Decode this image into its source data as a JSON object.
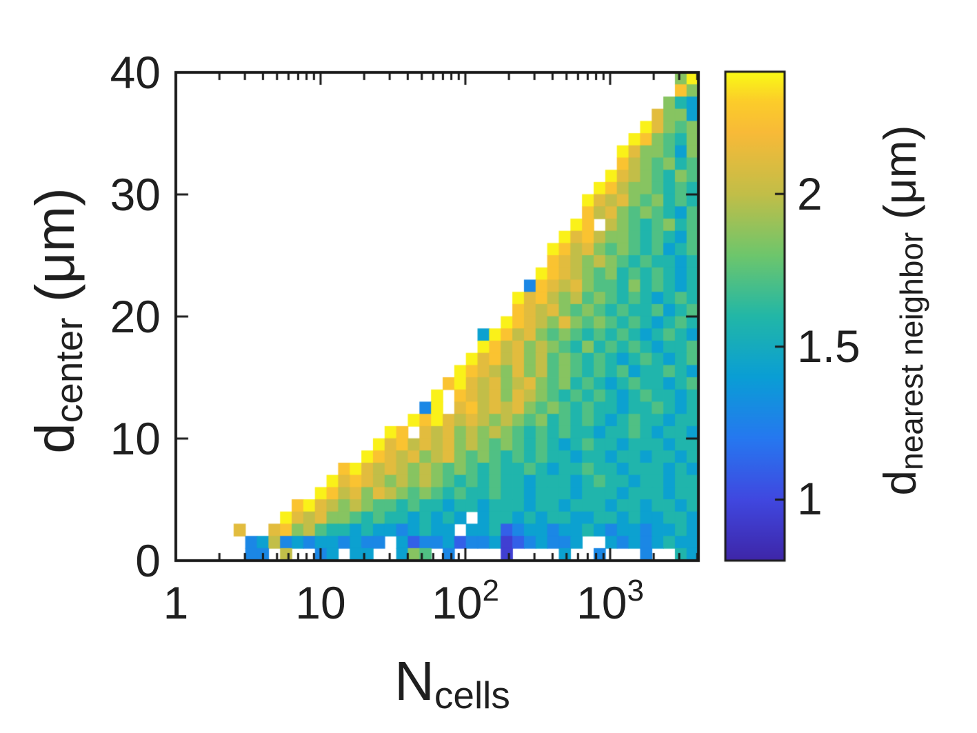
{
  "colors": {
    "background": "#ffffff",
    "axis": "#1a1a1a",
    "text": "#1f1f1f"
  },
  "chart_data": {
    "type": "heatmap",
    "title": "",
    "x_axis": {
      "label": {
        "main": "N",
        "sub": "cells"
      },
      "scale": "log",
      "range": [
        1,
        4000
      ],
      "log_span": 3.61,
      "ticks": [
        {
          "value": 1,
          "base": "1"
        },
        {
          "value": 10,
          "base": "10"
        },
        {
          "value": 100,
          "base": "10",
          "exp": "2"
        },
        {
          "value": 1000,
          "base": "10",
          "exp": "3"
        }
      ]
    },
    "y_axis": {
      "label": {
        "main": "d",
        "sub": "center",
        "rest": " (μm)"
      },
      "scale": "linear",
      "range": [
        0,
        40
      ],
      "ticks": [
        {
          "value": 0,
          "label": "0"
        },
        {
          "value": 10,
          "label": "10"
        },
        {
          "value": 20,
          "label": "20"
        },
        {
          "value": 30,
          "label": "30"
        },
        {
          "value": 40,
          "label": "40"
        }
      ]
    },
    "colorbar": {
      "label": {
        "main": "d",
        "sub": "nearest neighbor",
        "rest": " (μm)"
      },
      "range": [
        0.8,
        2.4
      ],
      "ticks": [
        {
          "value": 1,
          "label": "1"
        },
        {
          "value": 1.5,
          "label": "1.5"
        },
        {
          "value": 2,
          "label": "2"
        }
      ]
    },
    "colormap": {
      "name": "parula",
      "stops": [
        [
          0.0,
          "#3E26A8"
        ],
        [
          0.125,
          "#4048E0"
        ],
        [
          0.25,
          "#2678F0"
        ],
        [
          0.375,
          "#0A9ED5"
        ],
        [
          0.5,
          "#22B7A7"
        ],
        [
          0.625,
          "#6EC66C"
        ],
        [
          0.75,
          "#C2BE48"
        ],
        [
          0.875,
          "#F8BA38"
        ],
        [
          0.94,
          "#FCCD2A"
        ],
        [
          1.0,
          "#F9FB15"
        ]
      ]
    },
    "grid": {
      "n_cols": 45,
      "n_rows": 40,
      "row_height_um": 1,
      "note": "rows listed top (d=39-40um) to bottom (d=0-1um); s = starting column index; '.' = no data"
    },
    "encoding": {
      "a": 0.95,
      "b": 1.1,
      "c": 1.28,
      "d": 1.42,
      "e": 1.58,
      "f": 1.72,
      "g": 1.86,
      "h": 2.0,
      "i": 2.12,
      "j": 2.25,
      "k": 2.38
    },
    "rows": [
      {
        "s": 43,
        "v": "gk"
      },
      {
        "s": 43,
        "v": "jg"
      },
      {
        "s": 42,
        "v": "ged"
      },
      {
        "s": 41,
        "v": "iggd"
      },
      {
        "s": 40,
        "v": "kigfg"
      },
      {
        "s": 39,
        "v": "kjgfeg"
      },
      {
        "s": 38,
        "v": "kiggfdg"
      },
      {
        "s": 38,
        "v": "jhgfgef"
      },
      {
        "s": 37,
        "v": "kihgfegf"
      },
      {
        "s": 36,
        "v": "kjhggfefe"
      },
      {
        "s": 35,
        "v": "kihigfgefe"
      },
      {
        "s": 35,
        "v": "jhigfgfedf"
      },
      {
        "s": 34,
        "v": "kj.hgfefgef"
      },
      {
        "s": 33,
        "v": "kijhggfefedf"
      },
      {
        "s": 32,
        "v": "kjhigfgfefdef"
      },
      {
        "s": 32,
        "v": "jihghgfefeede"
      },
      {
        "s": 31,
        "v": "kjihgfgefefede"
      },
      {
        "s": 30,
        "v": "cjihigffegefede"
      },
      {
        "s": 29,
        "v": "kijhghfgfefedefe"
      },
      {
        "s": 29,
        "v": "jihigfgfefeefdef"
      },
      {
        "s": 28,
        "v": "kjihgigfgfefedefe"
      },
      {
        "s": 26,
        "v": "dkjhigfgfefefedefed"
      },
      {
        "s": 26,
        "v": "kjhighgfegefefedeef"
      },
      {
        "s": 25,
        "v": "kijhighfgfefedefedef"
      },
      {
        "s": 24,
        "v": "kjihgighfgfefefdeefed"
      },
      {
        "s": 23,
        "v": "jkihighigfgefedefeedef"
      },
      {
        "s": 22,
        "v": "k.jihigihgfefefedefeede"
      },
      {
        "s": 21,
        "v": "ck.ijhihigfgfefeedeefede"
      },
      {
        "s": 20,
        "v": "kjkihihghgfgefefedefeedee"
      },
      {
        "s": 18,
        "v": "kj.ihighghgfefefeedeefedeed"
      },
      {
        "s": 17,
        "v": "kijhihighgfgfefedefeedeeedee"
      },
      {
        "s": 16,
        "v": "kjihighigfgfefefeedeedeedeede"
      },
      {
        "s": 14,
        "v": "jkihihghgfgfefeefedeefeedeeeded"
      },
      {
        "s": 13,
        "v": "kijihghghgfefefeedeeedefeedeedee"
      },
      {
        "s": 12,
        "v": "kjhigihgfgfefeefeedeeedeeedeeedee"
      },
      {
        "s": 10,
        "v": "jkihghgffefeedeedeeedeedeeedeedeede"
      },
      {
        "s": 9,
        "v": "kihiggfefeededed.deededeeddeededdeed"
      },
      {
        "s": 5,
        "v": "i..ijghfeededdcdedd.ddebcddcddedcddcdded"
      },
      {
        "s": 5,
        "v": ".cdhcdcddcdcc.dbccdbccdabcdccd..dcdcdedd"
      },
      {
        "s": 6,
        "v": "cc.h..cd.dd..dgf.c....a....d..c...c..ed"
      }
    ]
  }
}
